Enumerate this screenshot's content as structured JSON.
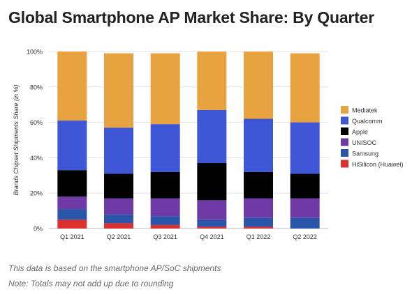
{
  "title": "Global Smartphone AP Market Share: By Quarter",
  "notes": [
    "This data is based on the smartphone AP/SoC shipments",
    "Note: Totals may not add up due to rounding"
  ],
  "chart_data": {
    "type": "bar",
    "stacked": true,
    "title": "Global Smartphone AP Market Share: By Quarter",
    "xlabel": "",
    "ylabel": "Brands Chipset Shipments Share (in %)",
    "ylim": [
      0,
      100
    ],
    "yticks": [
      "0%",
      "20%",
      "40%",
      "60%",
      "80%",
      "100%"
    ],
    "grid": true,
    "legend_position": "right",
    "categories": [
      "Q1 2021",
      "Q2 2021",
      "Q3 2021",
      "Q4 2021",
      "Q1 2022",
      "Q2 2022"
    ],
    "series": [
      {
        "name": "HiSilicon (Huawei)",
        "color": "#d93030",
        "values": [
          5,
          3,
          2,
          1,
          1,
          0
        ]
      },
      {
        "name": "Samsung",
        "color": "#2a55a8",
        "values": [
          6,
          5,
          5,
          4,
          5,
          6
        ]
      },
      {
        "name": "UNISOC",
        "color": "#6f3aa6",
        "values": [
          7,
          9,
          10,
          11,
          11,
          11
        ]
      },
      {
        "name": "Apple",
        "color": "#000000",
        "values": [
          15,
          14,
          15,
          21,
          15,
          14
        ]
      },
      {
        "name": "Qualcomm",
        "color": "#3c56d6",
        "values": [
          28,
          26,
          27,
          30,
          30,
          29
        ]
      },
      {
        "name": "Mediatek",
        "color": "#e8a23f",
        "values": [
          39,
          42,
          40,
          33,
          38,
          39
        ]
      }
    ],
    "legend_order": [
      "Mediatek",
      "Qualcomm",
      "Apple",
      "UNISOC",
      "Samsung",
      "HiSilicon (Huawei)"
    ]
  }
}
